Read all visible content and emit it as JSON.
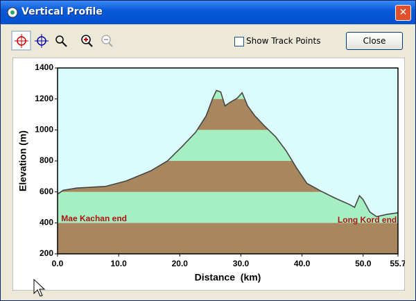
{
  "window": {
    "title": "Vertical Profile"
  },
  "toolbar": {
    "checkbox_label": "Show Track Points",
    "button": "Close"
  },
  "chart_data": {
    "type": "area",
    "x_label": "Distance  (km)",
    "y_label": "Elevation (m)",
    "x": [
      0,
      0.9,
      3.2,
      7.8,
      11.2,
      15.2,
      18,
      20.3,
      22.6,
      24.3,
      25.4,
      26,
      26.7,
      27.4,
      28.3,
      29.4,
      30.2,
      31.1,
      32.3,
      34,
      35.7,
      37.4,
      39.1,
      40.8,
      43.1,
      45.4,
      47.7,
      48.6,
      49.4,
      50,
      51.1,
      52.2,
      53.9,
      55.7
    ],
    "values": [
      585,
      610,
      625,
      635,
      670,
      735,
      800,
      890,
      985,
      1090,
      1205,
      1255,
      1245,
      1155,
      1180,
      1205,
      1240,
      1155,
      1090,
      1020,
      955,
      865,
      755,
      655,
      605,
      560,
      520,
      500,
      575,
      550,
      470,
      440,
      455,
      465
    ],
    "xlim": [
      0,
      55.7
    ],
    "xticks": [
      {
        "value": 0,
        "label": "0.0"
      },
      {
        "value": 10,
        "label": "10.0"
      },
      {
        "value": 20,
        "label": "20.0"
      },
      {
        "value": 30,
        "label": "30.0"
      },
      {
        "value": 40,
        "label": "40.0"
      },
      {
        "value": 50,
        "label": "50.0"
      },
      55.7
    ],
    "ylim": [
      200,
      1400
    ],
    "yticks": [
      200,
      400,
      600,
      800,
      1000,
      1200,
      1400
    ],
    "band_colors": [
      "#a8875f",
      "#a6efc2"
    ],
    "background": "#dcfbfd",
    "line_color": "#454545",
    "annotations": [
      {
        "text": "Mae Kachan end",
        "x": 0.6,
        "y": 425
      },
      {
        "text": "Long Kord end",
        "x": 55.5,
        "y": 415
      }
    ]
  }
}
